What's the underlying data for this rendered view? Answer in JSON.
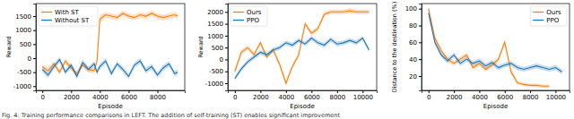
{
  "chart_data": [
    {
      "type": "line",
      "xlabel": "Episode",
      "ylabel": "Reward",
      "legend": "upper left",
      "x": [
        0,
        400,
        800,
        1200,
        1600,
        2000,
        2400,
        2800,
        3200,
        3600,
        3800,
        4000,
        4400,
        4800,
        5200,
        5600,
        6000,
        6400,
        6800,
        7200,
        7600,
        8000,
        8400,
        8800,
        9200,
        9400
      ],
      "xlim": [
        -450,
        9900
      ],
      "xticks": [
        0,
        2000,
        4000,
        6000,
        8000
      ],
      "ylim": [
        -1150,
        1950
      ],
      "yticks": [
        -1000,
        -500,
        0,
        500,
        1000,
        1500
      ],
      "series": [
        {
          "name": "With ST",
          "color": "#ff7f0e",
          "values": [
            -300,
            -450,
            -200,
            -500,
            -100,
            -350,
            -550,
            -250,
            -400,
            -450,
            -100,
            1400,
            1550,
            1500,
            1450,
            1600,
            1500,
            1450,
            1550,
            1500,
            1600,
            1500,
            1450,
            1500,
            1550,
            1500
          ],
          "error": [
            100,
            100,
            100,
            100,
            100,
            100,
            100,
            100,
            100,
            100,
            100,
            150,
            100,
            100,
            100,
            100,
            100,
            100,
            100,
            100,
            100,
            100,
            100,
            100,
            100,
            100
          ]
        },
        {
          "name": "Without ST",
          "color": "#1f77b4",
          "values": [
            -400,
            -600,
            -300,
            -50,
            -500,
            -250,
            -650,
            -150,
            -400,
            -200,
            -500,
            -300,
            -100,
            -550,
            -200,
            -400,
            -650,
            -250,
            -100,
            -450,
            -300,
            -600,
            -350,
            -200,
            -550,
            -500
          ],
          "error": [
            100,
            100,
            100,
            100,
            100,
            100,
            100,
            100,
            100,
            100,
            100,
            100,
            100,
            100,
            100,
            100,
            100,
            100,
            100,
            100,
            100,
            100,
            100,
            100,
            100,
            100
          ]
        }
      ]
    },
    {
      "type": "line",
      "xlabel": "Episode",
      "ylabel": "Reward",
      "legend": "upper left",
      "x": [
        0,
        500,
        1000,
        1500,
        2000,
        2500,
        3000,
        3500,
        4000,
        4500,
        5000,
        5500,
        6000,
        6500,
        7000,
        7500,
        8000,
        8500,
        9000,
        9500,
        10000,
        10500
      ],
      "xlim": [
        -550,
        11100
      ],
      "xticks": [
        0,
        2000,
        4000,
        6000,
        8000,
        10000
      ],
      "ylim": [
        -1300,
        2350
      ],
      "yticks": [
        -1000,
        -500,
        0,
        500,
        1000,
        1500,
        2000
      ],
      "series": [
        {
          "name": "Ours",
          "color": "#ff7f0e",
          "values": [
            -500,
            300,
            500,
            200,
            700,
            100,
            400,
            -200,
            -1000,
            -300,
            200,
            1500,
            1100,
            1300,
            1900,
            2000,
            2000,
            2000,
            2050,
            2000,
            2000,
            2000
          ],
          "error": [
            100,
            100,
            100,
            100,
            100,
            100,
            100,
            100,
            100,
            100,
            100,
            100,
            100,
            100,
            100,
            100,
            100,
            100,
            100,
            100,
            100,
            100
          ]
        },
        {
          "name": "PPO",
          "color": "#1f77b4",
          "values": [
            -800,
            -400,
            -100,
            100,
            300,
            200,
            400,
            500,
            700,
            600,
            800,
            650,
            900,
            700,
            600,
            850,
            650,
            700,
            800,
            700,
            900,
            400
          ],
          "error": [
            100,
            100,
            100,
            100,
            100,
            100,
            100,
            100,
            100,
            100,
            100,
            100,
            100,
            100,
            100,
            100,
            100,
            100,
            100,
            100,
            100,
            100
          ]
        }
      ]
    },
    {
      "type": "line",
      "xlabel": "Episode",
      "ylabel": "Distance to the destination (%)",
      "legend": "upper right",
      "x": [
        0,
        500,
        1000,
        1500,
        2000,
        2500,
        3000,
        3500,
        4000,
        4500,
        5000,
        5500,
        6000,
        6500,
        7000,
        7500,
        8000,
        8500,
        9000,
        9500,
        10000,
        10500
      ],
      "xlim": [
        -550,
        11100
      ],
      "xticks": [
        0,
        2000,
        4000,
        6000,
        8000,
        10000
      ],
      "ylim": [
        3,
        106
      ],
      "yticks": [
        20,
        40,
        60,
        80,
        100
      ],
      "series": [
        {
          "name": "Ours",
          "color": "#ff7f0e",
          "values": [
            100,
            65,
            50,
            40,
            35,
            40,
            45,
            30,
            35,
            28,
            33,
            40,
            60,
            25,
            12,
            10,
            9,
            9,
            8,
            8,
            null,
            null
          ],
          "error": [
            2,
            3,
            3,
            3,
            3,
            3,
            3,
            3,
            3,
            3,
            3,
            3,
            3,
            3,
            2,
            2,
            2,
            2,
            2,
            2,
            null,
            null
          ]
        },
        {
          "name": "PPO",
          "color": "#1f77b4",
          "values": [
            95,
            60,
            45,
            38,
            45,
            35,
            40,
            35,
            38,
            32,
            36,
            30,
            33,
            35,
            30,
            28,
            30,
            32,
            30,
            28,
            30,
            25
          ],
          "error": [
            3,
            3,
            3,
            3,
            3,
            3,
            3,
            3,
            3,
            3,
            3,
            3,
            3,
            3,
            3,
            3,
            3,
            3,
            3,
            3,
            3,
            3
          ]
        }
      ]
    }
  ],
  "caption": "Fig. 4: Training performance comparisons in LEFT. The addition of self-training (ST) enables significant improvement"
}
